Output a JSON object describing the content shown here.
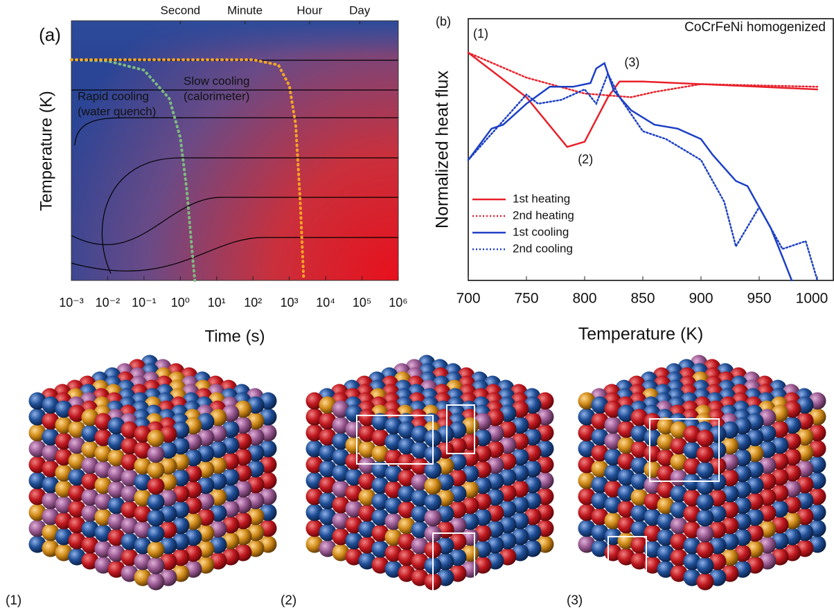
{
  "chart_data": [
    {
      "type": "line",
      "panel_label": "(a)",
      "xlabel": "Time (s)",
      "ylabel": "Temperature (K)",
      "xscale": "log",
      "xlim": [
        0.001,
        1000000
      ],
      "ylim": [
        0,
        1
      ],
      "xticks": [
        {
          "value": 0.001,
          "label": "10⁻³"
        },
        {
          "value": 0.01,
          "label": "10⁻²"
        },
        {
          "value": 0.1,
          "label": "10⁻¹"
        },
        {
          "value": 1,
          "label": "10⁰"
        },
        {
          "value": 10,
          "label": "10¹"
        },
        {
          "value": 100,
          "label": "10²"
        },
        {
          "value": 1000,
          "label": "10³"
        },
        {
          "value": 10000,
          "label": "10⁴"
        },
        {
          "value": 100000,
          "label": "10⁵"
        },
        {
          "value": 1000000,
          "label": "10⁶"
        }
      ],
      "top_ticks": [
        {
          "value": 1,
          "label": "Second"
        },
        {
          "value": 60,
          "label": "Minute"
        },
        {
          "value": 3600,
          "label": "Hour"
        },
        {
          "value": 86400,
          "label": "Day"
        }
      ],
      "series": [
        {
          "color": "#7dbb7d",
          "x": [
            0.001,
            0.01,
            0.1,
            0.5,
            1,
            1.5,
            2,
            2.5
          ],
          "values": [
            0.85,
            0.845,
            0.81,
            0.7,
            0.55,
            0.35,
            0.15,
            0
          ]
        },
        {
          "color": "#f5a623",
          "x": [
            0.001,
            1,
            100,
            500,
            1000,
            1500,
            2000,
            2500
          ],
          "values": [
            0.85,
            0.85,
            0.85,
            0.83,
            0.75,
            0.6,
            0.3,
            0
          ]
        }
      ],
      "annotations": [
        {
          "lines": [
            "Rapid cooling",
            "(water quench)"
          ],
          "color": "#7dbb7d"
        },
        {
          "lines": [
            "Slow cooling",
            "(calorimeter)"
          ],
          "color": "#f5a623"
        }
      ]
    },
    {
      "type": "line",
      "panel_label": "(b)",
      "title": "CoCrFeNi homogenized",
      "xlabel": "Temperature (K)",
      "ylabel": "Normalized heat flux",
      "xlim": [
        700,
        1000
      ],
      "ylim": [
        0,
        1
      ],
      "xticks": [
        700,
        750,
        800,
        850,
        900,
        950,
        1000
      ],
      "legend": "lower left",
      "series": [
        {
          "name": "1st heating",
          "color": "#e8202a",
          "dash": "solid",
          "x": [
            700,
            750,
            785,
            800,
            820,
            830,
            850,
            900,
            950,
            1000
          ],
          "values": [
            0.87,
            0.7,
            0.51,
            0.53,
            0.7,
            0.76,
            0.76,
            0.75,
            0.74,
            0.73
          ]
        },
        {
          "name": "2nd heating",
          "color": "#e8202a",
          "dash": "dotted",
          "x": [
            700,
            750,
            800,
            840,
            860,
            900,
            1000
          ],
          "values": [
            0.87,
            0.775,
            0.714,
            0.7,
            0.72,
            0.75,
            0.74
          ]
        },
        {
          "name": "1st cooling",
          "color": "#1c3fc4",
          "dash": "solid",
          "x": [
            700,
            720,
            730,
            750,
            770,
            790,
            805,
            810,
            817,
            825,
            840,
            860,
            880,
            900,
            910,
            930,
            940,
            950,
            960,
            970,
            978
          ],
          "values": [
            0.46,
            0.58,
            0.595,
            0.675,
            0.74,
            0.74,
            0.754,
            0.81,
            0.83,
            0.725,
            0.65,
            0.595,
            0.58,
            0.54,
            0.48,
            0.38,
            0.36,
            0.28,
            0.2,
            0.09,
            0
          ]
        },
        {
          "name": "2nd cooling",
          "color": "#1c3fc4",
          "dash": "dotted",
          "x": [
            700,
            730,
            750,
            760,
            780,
            800,
            810,
            820,
            830,
            850,
            870,
            900,
            920,
            930,
            950,
            970,
            990,
            1000
          ],
          "values": [
            0.46,
            0.61,
            0.71,
            0.675,
            0.69,
            0.73,
            0.675,
            0.79,
            0.7,
            0.57,
            0.54,
            0.46,
            0.3,
            0.13,
            0.28,
            0.12,
            0.15,
            0
          ]
        }
      ],
      "annotations": [
        {
          "text": "(1)",
          "x": 700,
          "y": 0.94
        },
        {
          "text": "(2)",
          "x": 790,
          "y": 0.46
        },
        {
          "text": "(3)",
          "x": 830,
          "y": 0.83
        }
      ]
    }
  ],
  "panels": [
    {
      "label": "(1)"
    },
    {
      "label": "(2)"
    },
    {
      "label": "(3)"
    }
  ]
}
